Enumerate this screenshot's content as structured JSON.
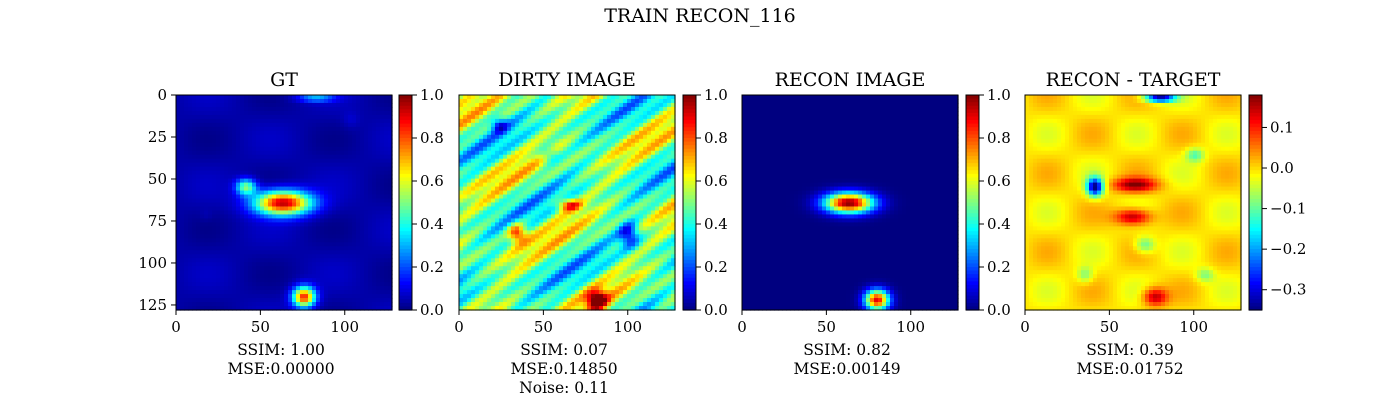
{
  "suptitle": "TRAIN RECON_116",
  "colormap": "jet",
  "colors": {
    "low": "#00007f",
    "mid": "#7fff7f",
    "high": "#7f0000"
  },
  "chart_data": [
    {
      "type": "heatmap",
      "title": "GT",
      "xticks": [
        "0",
        "50",
        "100"
      ],
      "yticks": [
        "0",
        "25",
        "50",
        "75",
        "100",
        "125"
      ],
      "xlim": [
        0,
        128
      ],
      "ylim": [
        128,
        0
      ],
      "colorbar": {
        "range": [
          0.0,
          1.0
        ],
        "ticks": [
          "0.0",
          "0.2",
          "0.4",
          "0.6",
          "0.8",
          "1.0"
        ]
      },
      "caption": [
        "SSIM: 1.00",
        "MSE:0.00000"
      ],
      "ssim": 1.0,
      "mse": 0.0
    },
    {
      "type": "heatmap",
      "title": "DIRTY IMAGE",
      "xticks": [
        "0",
        "50",
        "100"
      ],
      "xlim": [
        0,
        128
      ],
      "ylim": [
        128,
        0
      ],
      "colorbar": {
        "range": [
          0.0,
          1.0
        ],
        "ticks": [
          "0.0",
          "0.2",
          "0.4",
          "0.6",
          "0.8",
          "1.0"
        ]
      },
      "caption": [
        "SSIM: 0.07",
        "MSE:0.14850",
        "Noise: 0.11"
      ],
      "ssim": 0.07,
      "mse": 0.1485,
      "noise": 0.11
    },
    {
      "type": "heatmap",
      "title": "RECON IMAGE",
      "xticks": [
        "0",
        "50",
        "100"
      ],
      "xlim": [
        0,
        128
      ],
      "ylim": [
        128,
        0
      ],
      "colorbar": {
        "range": [
          0.0,
          1.0
        ],
        "ticks": [
          "0.0",
          "0.2",
          "0.4",
          "0.6",
          "0.8",
          "1.0"
        ]
      },
      "caption": [
        "SSIM: 0.82",
        "MSE:0.00149"
      ],
      "ssim": 0.82,
      "mse": 0.00149
    },
    {
      "type": "heatmap",
      "title": "RECON - TARGET",
      "xticks": [
        "0",
        "50",
        "100"
      ],
      "xlim": [
        0,
        128
      ],
      "ylim": [
        128,
        0
      ],
      "colorbar": {
        "range": [
          -0.35,
          0.18
        ],
        "ticks": [
          "0.1",
          "0.0",
          "−0.1",
          "−0.2",
          "−0.3"
        ],
        "tick_values": [
          0.1,
          0.0,
          -0.1,
          -0.2,
          -0.3
        ]
      },
      "caption": [
        "SSIM: 0.39",
        "MSE:0.01752"
      ],
      "ssim": 0.39,
      "mse": 0.01752
    }
  ]
}
